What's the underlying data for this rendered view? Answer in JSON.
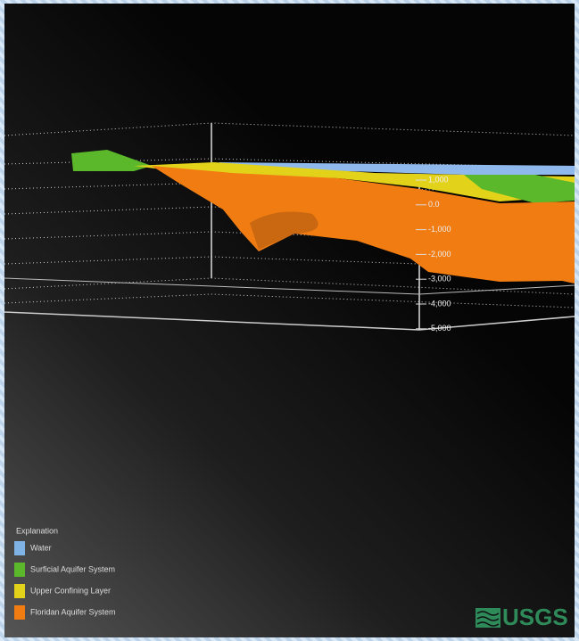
{
  "axis": {
    "ticks": [
      "1,000",
      "0.0",
      "-1,000",
      "-2,000",
      "-3,000",
      "-4,000",
      "-5,000"
    ]
  },
  "legend": {
    "title": "Explanation",
    "items": [
      {
        "label": "Water",
        "color": "#7fb2e5"
      },
      {
        "label": "Surficial Aquifer System",
        "color": "#5bb82a"
      },
      {
        "label": "Upper Confining Layer",
        "color": "#e3d21a"
      },
      {
        "label": "Floridan Aquifer System",
        "color": "#f07c12"
      }
    ]
  },
  "logo": {
    "text": "USGS"
  }
}
